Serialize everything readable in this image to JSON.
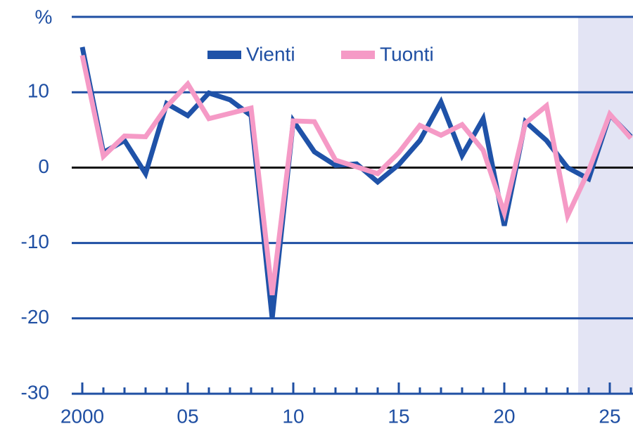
{
  "chart_data": {
    "type": "line",
    "y_unit": "%",
    "x": [
      2000,
      2001,
      2002,
      2003,
      2004,
      2005,
      2006,
      2007,
      2008,
      2009,
      2010,
      2011,
      2012,
      2013,
      2014,
      2015,
      2016,
      2017,
      2018,
      2019,
      2020,
      2021,
      2022,
      2023,
      2024,
      2025,
      2026
    ],
    "series": [
      {
        "name": "Vienti",
        "color": "#1f52a8",
        "values": [
          16.0,
          2.0,
          3.6,
          -0.8,
          8.5,
          6.9,
          9.9,
          9.0,
          6.9,
          -20.0,
          6.2,
          2.1,
          0.3,
          0.5,
          -1.9,
          0.4,
          3.6,
          8.7,
          1.6,
          6.5,
          -7.7,
          6.1,
          3.6,
          0.0,
          -1.5,
          7.0,
          4.1
        ]
      },
      {
        "name": "Tuonti",
        "color": "#f59ac6",
        "values": [
          14.9,
          1.5,
          4.2,
          4.1,
          8.1,
          11.1,
          6.5,
          7.2,
          7.9,
          -16.9,
          6.2,
          6.1,
          1.0,
          0.1,
          -0.8,
          2.0,
          5.6,
          4.3,
          5.7,
          2.3,
          -6.0,
          5.9,
          8.2,
          -6.4,
          -0.4,
          7.1,
          3.9
        ]
      }
    ],
    "xlim": [
      1999.5,
      2026.1
    ],
    "xticks": [
      2000,
      {
        "value": 2005,
        "label": "05"
      },
      {
        "value": 2010,
        "label": "10"
      },
      {
        "value": 2015,
        "label": "15"
      },
      {
        "value": 2020,
        "label": "20"
      },
      {
        "value": 2025,
        "label": "25"
      }
    ],
    "ylim": [
      -30,
      20
    ],
    "yticks": [
      -30,
      -20,
      -10,
      0,
      10
    ],
    "forecast_start": 2023.5,
    "grid": true,
    "legend": "top"
  }
}
